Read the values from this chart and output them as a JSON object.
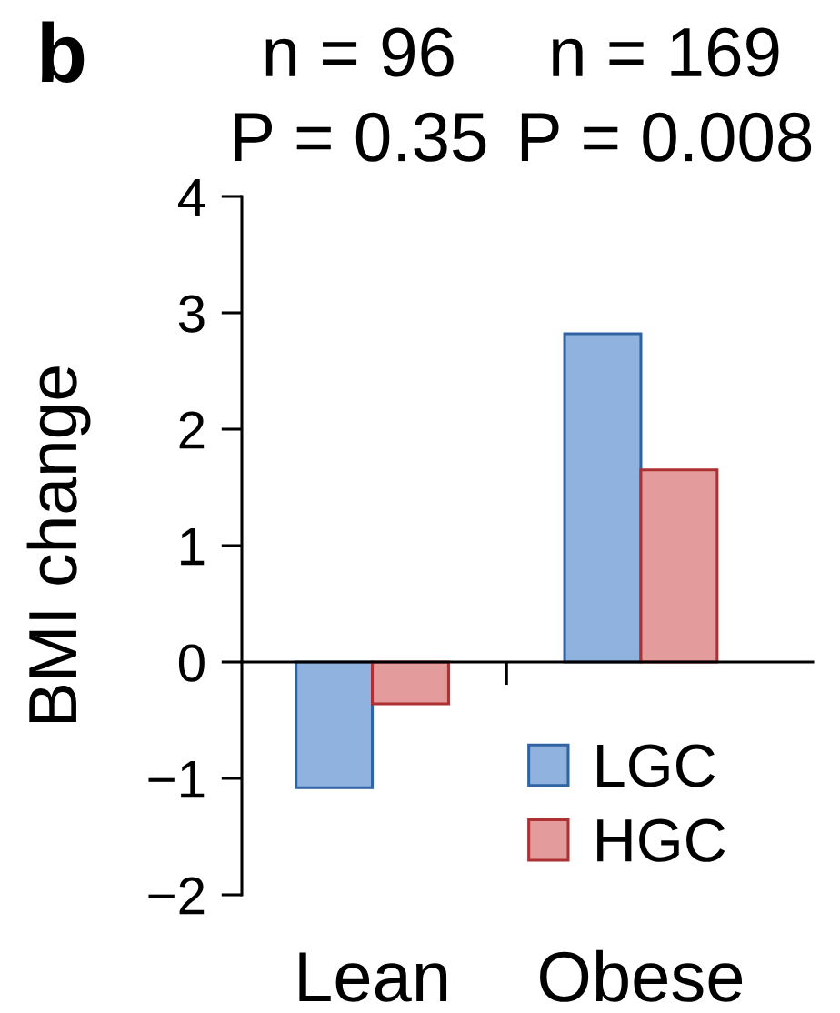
{
  "chart_data": {
    "type": "bar",
    "title": "b",
    "ylabel": "BMI change",
    "categories": [
      "Lean",
      "Obese"
    ],
    "series": [
      {
        "name": "LGC",
        "color": "#8fb2de",
        "values": [
          -1.08,
          2.82
        ]
      },
      {
        "name": "HGC",
        "color": "#e39b9c",
        "values": [
          -0.36,
          1.65
        ]
      }
    ],
    "ylim": [
      -2,
      4
    ],
    "yticks": [
      {
        "value": -2,
        "label": "−2"
      },
      {
        "value": -1,
        "label": "−1"
      },
      0,
      1,
      2,
      3,
      4
    ],
    "annotations": [
      "n = 96\nP = 0.35",
      "n = 169\nP = 0.008"
    ],
    "legend": "bottom right"
  }
}
